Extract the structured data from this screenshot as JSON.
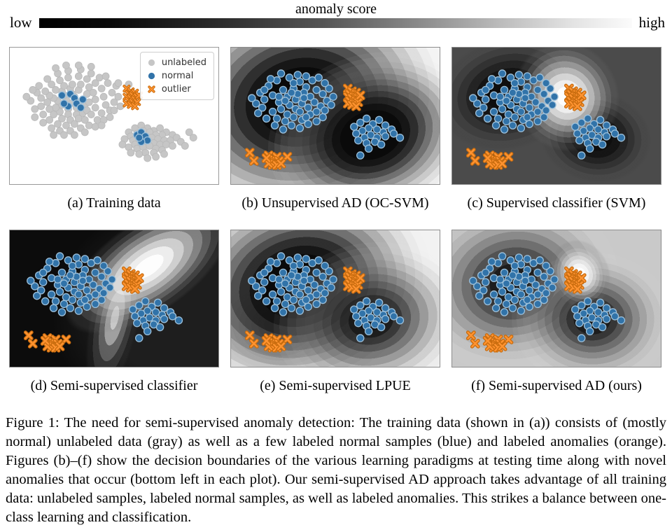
{
  "colorbar": {
    "title": "anomaly score",
    "low_label": "low",
    "high_label": "high",
    "gradient_start": "#000000",
    "gradient_end": "#fbfbfb"
  },
  "legend": {
    "items": [
      {
        "label": "unlabeled",
        "marker": "circle",
        "color": "#c6c6c6"
      },
      {
        "label": "normal",
        "marker": "circle",
        "color": "#3173a9"
      },
      {
        "label": "outlier",
        "marker": "x",
        "color": "#ff7f0e"
      }
    ]
  },
  "colors": {
    "unlabeled_fill": "#c6c6c6",
    "unlabeled_edge": "#b9b9b9",
    "normal_fill": "#3173a9",
    "normal_edge": "#9dc0da",
    "outlier_fill": "#ff9330",
    "outlier_edge": "#c86c0e",
    "panel_border": "#8d8d8d"
  },
  "panels": [
    {
      "id": "a",
      "caption": "(a) Training data",
      "show_legend": true,
      "x_scale": 0.8,
      "sets": [
        "unlabeled_left",
        "unlabeled_right",
        "labeled_normal_left",
        "labeled_normal_right",
        "train_outliers"
      ]
    },
    {
      "id": "b",
      "caption": "(b) Unsupervised AD (OC-SVM)",
      "show_legend": false,
      "x_scale": 1,
      "sets": [
        "test_normal_left",
        "test_normal_right",
        "train_outliers",
        "novel_anomalies"
      ]
    },
    {
      "id": "c",
      "caption": "(c) Supervised classifier (SVM)",
      "show_legend": false,
      "x_scale": 1,
      "sets": [
        "test_normal_left",
        "test_normal_right",
        "train_outliers",
        "novel_anomalies"
      ]
    },
    {
      "id": "d",
      "caption": "(d) Semi-supervised classifier",
      "show_legend": false,
      "x_scale": 1,
      "sets": [
        "test_normal_left",
        "test_normal_right",
        "train_outliers",
        "novel_anomalies"
      ]
    },
    {
      "id": "e",
      "caption": "(e) Semi-supervised LPUE",
      "show_legend": false,
      "x_scale": 1,
      "sets": [
        "test_normal_left",
        "test_normal_right",
        "train_outliers",
        "novel_anomalies"
      ]
    },
    {
      "id": "f",
      "caption": "(f) Semi-supervised AD (ours)",
      "show_legend": false,
      "x_scale": 1,
      "sets": [
        "test_normal_left",
        "test_normal_right",
        "train_outliers",
        "novel_anomalies"
      ]
    }
  ],
  "point_sets": {
    "unlabeled_left": {
      "type": "unlabeled",
      "points": [
        [
          29,
          41
        ],
        [
          27,
          38
        ],
        [
          31,
          36
        ],
        [
          33,
          40
        ],
        [
          25,
          42
        ],
        [
          28,
          45
        ],
        [
          32,
          44
        ],
        [
          35,
          38
        ],
        [
          30,
          34
        ],
        [
          26,
          35
        ],
        [
          23,
          39
        ],
        [
          34,
          45
        ],
        [
          36,
          42
        ],
        [
          24,
          47
        ],
        [
          28,
          49
        ],
        [
          32,
          49
        ],
        [
          35,
          48
        ],
        [
          22,
          44
        ],
        [
          21,
          37
        ],
        [
          25,
          32
        ],
        [
          29,
          30
        ],
        [
          33,
          31
        ],
        [
          37,
          34
        ],
        [
          38,
          40
        ],
        [
          37,
          46
        ],
        [
          33,
          52
        ],
        [
          29,
          53
        ],
        [
          25,
          52
        ],
        [
          21,
          49
        ],
        [
          19,
          45
        ],
        [
          18,
          40
        ],
        [
          19,
          35
        ],
        [
          22,
          31
        ],
        [
          26,
          28
        ],
        [
          30,
          27
        ],
        [
          34,
          27
        ],
        [
          38,
          29
        ],
        [
          40,
          33
        ],
        [
          41,
          38
        ],
        [
          41,
          44
        ],
        [
          39,
          49
        ],
        [
          36,
          53
        ],
        [
          31,
          56
        ],
        [
          27,
          57
        ],
        [
          23,
          56
        ],
        [
          19,
          53
        ],
        [
          16,
          49
        ],
        [
          15,
          43
        ],
        [
          15,
          37
        ],
        [
          17,
          32
        ],
        [
          20,
          27
        ],
        [
          24,
          24
        ],
        [
          28,
          22
        ],
        [
          33,
          21
        ],
        [
          37,
          23
        ],
        [
          41,
          26
        ],
        [
          44,
          30
        ],
        [
          45,
          36
        ],
        [
          46,
          42
        ],
        [
          44,
          48
        ],
        [
          42,
          53
        ],
        [
          38,
          57
        ],
        [
          34,
          59
        ],
        [
          29,
          61
        ],
        [
          24,
          61
        ],
        [
          20,
          59
        ],
        [
          45,
          53
        ],
        [
          48,
          46
        ],
        [
          13,
          33
        ],
        [
          12,
          45
        ],
        [
          26,
          64
        ],
        [
          31,
          64
        ],
        [
          36,
          62
        ],
        [
          41,
          58
        ],
        [
          10,
          39
        ],
        [
          14,
          28
        ],
        [
          18,
          23
        ],
        [
          23,
          19
        ],
        [
          28,
          17
        ],
        [
          34,
          16
        ],
        [
          39,
          19
        ],
        [
          43,
          22
        ],
        [
          47,
          26
        ],
        [
          49,
          33
        ],
        [
          50,
          40
        ],
        [
          16,
          55
        ],
        [
          12,
          51
        ],
        [
          48,
          51
        ],
        [
          21,
          64
        ],
        [
          44,
          57
        ],
        [
          50,
          46
        ],
        [
          8,
          36
        ],
        [
          11,
          31
        ],
        [
          33,
          13
        ],
        [
          39,
          14
        ],
        [
          27,
          13
        ],
        [
          22,
          15
        ],
        [
          46,
          21
        ],
        [
          51,
          28
        ],
        [
          52,
          36
        ],
        [
          53,
          43
        ],
        [
          52,
          26
        ],
        [
          57,
          27
        ]
      ]
    },
    "unlabeled_right": {
      "type": "unlabeled",
      "points": [
        [
          57,
          62
        ],
        [
          60,
          59
        ],
        [
          63,
          57
        ],
        [
          66,
          59
        ],
        [
          69,
          61
        ],
        [
          72,
          59
        ],
        [
          75,
          62
        ],
        [
          78,
          64
        ],
        [
          73,
          64
        ],
        [
          70,
          64
        ],
        [
          67,
          62
        ],
        [
          64,
          61
        ],
        [
          61,
          63
        ],
        [
          58,
          65
        ],
        [
          55,
          67
        ],
        [
          59,
          68
        ],
        [
          62,
          67
        ],
        [
          65,
          65
        ],
        [
          68,
          66
        ],
        [
          71,
          67
        ],
        [
          74,
          68
        ],
        [
          77,
          68
        ],
        [
          80,
          66
        ],
        [
          82,
          69
        ],
        [
          60,
          71
        ],
        [
          63,
          70
        ],
        [
          66,
          69
        ],
        [
          69,
          70
        ],
        [
          72,
          71
        ],
        [
          75,
          71
        ],
        [
          78,
          72
        ],
        [
          57,
          73
        ],
        [
          61,
          74
        ],
        [
          64,
          73
        ],
        [
          67,
          72
        ],
        [
          70,
          74
        ],
        [
          73,
          75
        ],
        [
          65,
          77
        ],
        [
          69,
          77
        ],
        [
          62,
          78
        ],
        [
          58,
          77
        ],
        [
          66,
          81
        ],
        [
          70,
          80
        ],
        [
          74,
          78
        ],
        [
          86,
          62
        ],
        [
          88,
          66
        ],
        [
          84,
          72
        ],
        [
          54,
          71
        ]
      ]
    },
    "labeled_normal_left": {
      "type": "normal",
      "points": [
        [
          25,
          35
        ],
        [
          29,
          34
        ],
        [
          31,
          37
        ],
        [
          32,
          41
        ],
        [
          28,
          43
        ],
        [
          34,
          44
        ],
        [
          26,
          41
        ],
        [
          35,
          38
        ]
      ]
    },
    "labeled_normal_right": {
      "type": "normal",
      "points": [
        [
          61,
          64
        ],
        [
          63,
          62
        ],
        [
          65,
          65
        ],
        [
          66,
          68
        ],
        [
          63,
          69
        ],
        [
          62,
          66
        ]
      ]
    },
    "train_outliers": {
      "type": "outlier",
      "points": [
        [
          56,
          30
        ],
        [
          58,
          32
        ],
        [
          60,
          33
        ],
        [
          57,
          34
        ],
        [
          59,
          35
        ],
        [
          61,
          36
        ],
        [
          56,
          36
        ],
        [
          58,
          37
        ],
        [
          60,
          38
        ],
        [
          57,
          39
        ],
        [
          59,
          40
        ],
        [
          61,
          40
        ],
        [
          56,
          41
        ],
        [
          58,
          42
        ],
        [
          60,
          43
        ],
        [
          62,
          35
        ]
      ]
    },
    "test_normal_left": {
      "type": "normal",
      "points": [
        [
          18,
          28
        ],
        [
          22,
          24
        ],
        [
          25,
          31
        ],
        [
          20,
          35
        ],
        [
          16,
          38
        ],
        [
          23,
          40
        ],
        [
          27,
          36
        ],
        [
          30,
          30
        ],
        [
          33,
          25
        ],
        [
          36,
          29
        ],
        [
          39,
          24
        ],
        [
          35,
          33
        ],
        [
          38,
          36
        ],
        [
          41,
          31
        ],
        [
          44,
          34
        ],
        [
          31,
          38
        ],
        [
          28,
          42
        ],
        [
          24,
          45
        ],
        [
          20,
          47
        ],
        [
          27,
          49
        ],
        [
          31,
          45
        ],
        [
          34,
          41
        ],
        [
          37,
          44
        ],
        [
          40,
          40
        ],
        [
          43,
          43
        ],
        [
          46,
          39
        ],
        [
          30,
          51
        ],
        [
          34,
          53
        ],
        [
          26,
          54
        ],
        [
          22,
          52
        ],
        [
          38,
          49
        ],
        [
          41,
          47
        ],
        [
          44,
          51
        ],
        [
          15,
          44
        ],
        [
          12,
          41
        ],
        [
          14,
          33
        ],
        [
          10,
          37
        ],
        [
          47,
          30
        ],
        [
          45,
          26
        ],
        [
          42,
          22
        ],
        [
          32,
          20
        ],
        [
          28,
          22
        ],
        [
          24,
          19
        ],
        [
          19,
          23
        ],
        [
          33,
          47
        ],
        [
          36,
          51
        ],
        [
          29,
          57
        ],
        [
          33,
          59
        ],
        [
          25,
          60
        ],
        [
          37,
          56
        ],
        [
          13,
          48
        ],
        [
          17,
          52
        ],
        [
          21,
          57
        ],
        [
          41,
          54
        ],
        [
          45,
          46
        ],
        [
          48,
          42
        ],
        [
          16,
          31
        ],
        [
          49,
          36
        ],
        [
          35,
          37
        ],
        [
          32,
          34
        ],
        [
          29,
          33
        ],
        [
          26,
          39
        ],
        [
          23,
          36
        ],
        [
          30,
          26
        ],
        [
          36,
          21
        ]
      ]
    },
    "test_normal_right": {
      "type": "normal",
      "points": [
        [
          59,
          58
        ],
        [
          62,
          55
        ],
        [
          65,
          52
        ],
        [
          68,
          56
        ],
        [
          71,
          53
        ],
        [
          74,
          57
        ],
        [
          77,
          60
        ],
        [
          73,
          62
        ],
        [
          70,
          60
        ],
        [
          66,
          59
        ],
        [
          63,
          61
        ],
        [
          60,
          63
        ],
        [
          64,
          66
        ],
        [
          67,
          64
        ],
        [
          70,
          66
        ],
        [
          74,
          65
        ],
        [
          78,
          63
        ],
        [
          81,
          66
        ],
        [
          61,
          68
        ],
        [
          65,
          70
        ],
        [
          69,
          69
        ],
        [
          72,
          71
        ],
        [
          66,
          74
        ],
        [
          62,
          79
        ]
      ]
    },
    "novel_anomalies": {
      "type": "outlier",
      "points": [
        [
          9,
          77
        ],
        [
          11,
          83
        ],
        [
          18,
          79
        ],
        [
          20,
          81
        ],
        [
          22,
          80
        ],
        [
          19,
          83
        ],
        [
          21,
          84
        ],
        [
          23,
          83
        ],
        [
          20,
          86
        ],
        [
          18,
          85
        ],
        [
          22,
          86
        ],
        [
          27,
          80
        ],
        [
          17,
          81
        ],
        [
          24,
          85
        ]
      ]
    }
  },
  "figure_caption": {
    "text": "Figure 1: The need for semi-supervised anomaly detection: The training data (shown in (a)) consists of (mostly normal) unlabeled data (gray) as well as a few labeled normal samples (blue) and labeled anomalies (orange). Figures (b)–(f) show the decision boundaries of the various learning paradigms at testing time along with novel anomalies that occur (bottom left in each plot). Our semi-supervised AD approach takes advantage of all training data: unlabeled samples, labeled normal samples, as well as labeled anomalies. This strikes a balance between one-class learning and classification."
  }
}
